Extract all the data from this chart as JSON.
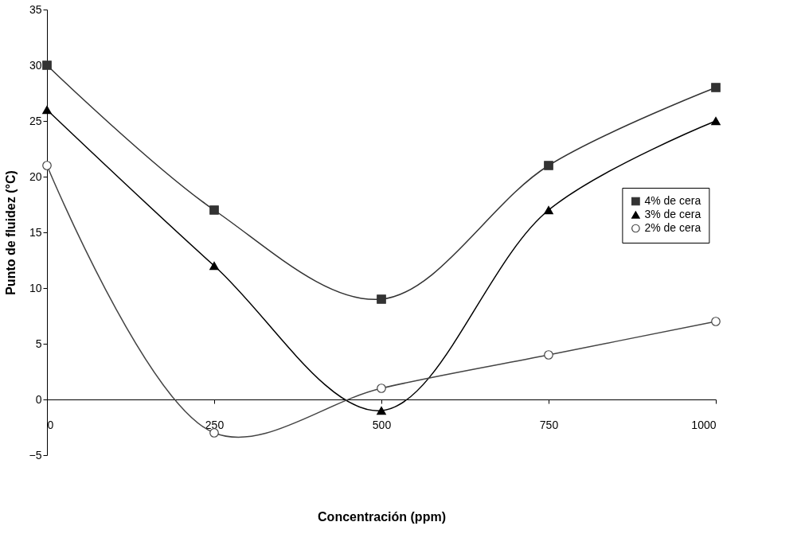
{
  "chart_data": {
    "type": "line",
    "xlabel": "Concentración (ppm)",
    "ylabel": "Punto de fluidez (°C)",
    "x": [
      0,
      250,
      500,
      750,
      1000
    ],
    "series": [
      {
        "name": "4% de cera",
        "color": "#333333",
        "marker": "square",
        "values": [
          30,
          17,
          9,
          21,
          28
        ]
      },
      {
        "name": "3% de cera",
        "color": "#000000",
        "marker": "triangle",
        "values": [
          26,
          12,
          -1,
          17,
          25
        ]
      },
      {
        "name": "2% de cera",
        "color": "#444444",
        "marker": "circle",
        "values": [
          21,
          -3,
          1,
          4,
          7
        ]
      }
    ],
    "xlim": [
      0,
      1000
    ],
    "xticks": [
      0,
      250,
      500,
      750,
      1000
    ],
    "ylim": [
      -5,
      35
    ],
    "yticks": [
      -5,
      0,
      5,
      10,
      15,
      20,
      25,
      30,
      35
    ],
    "grid": false,
    "legend": "right",
    "line_style": "solid"
  }
}
